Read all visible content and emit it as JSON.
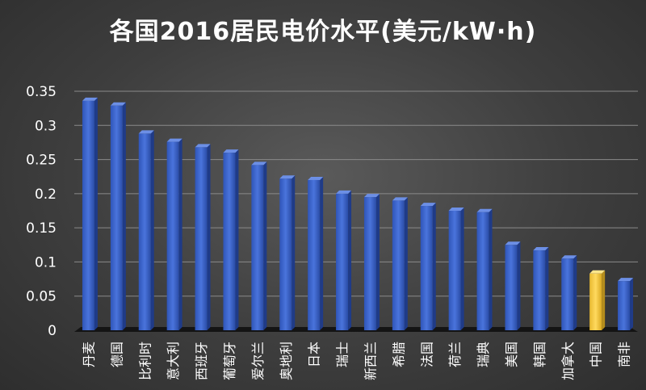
{
  "chart_data": {
    "type": "bar",
    "title": "各国2016居民电价水平(美元/kW·h)",
    "xlabel": "",
    "ylabel": "",
    "ylim": [
      0,
      0.35
    ],
    "yticks": [
      "0",
      "0.05",
      "0.1",
      "0.15",
      "0.2",
      "0.25",
      "0.3",
      "0.35"
    ],
    "grid": true,
    "categories": [
      "丹麦",
      "德国",
      "比利时",
      "意大利",
      "西班牙",
      "葡萄牙",
      "爱尔兰",
      "奥地利",
      "日本",
      "瑞士",
      "新西兰",
      "希腊",
      "法国",
      "荷兰",
      "瑞典",
      "美国",
      "韩国",
      "加拿大",
      "中国",
      "南非"
    ],
    "values": [
      0.336,
      0.329,
      0.288,
      0.276,
      0.268,
      0.26,
      0.242,
      0.222,
      0.22,
      0.2,
      0.195,
      0.19,
      0.182,
      0.175,
      0.173,
      0.125,
      0.117,
      0.105,
      0.083,
      0.072
    ],
    "colors": {
      "default": "#3a63c9",
      "highlight": "#f7cf4a",
      "highlight_category": "中国"
    }
  }
}
